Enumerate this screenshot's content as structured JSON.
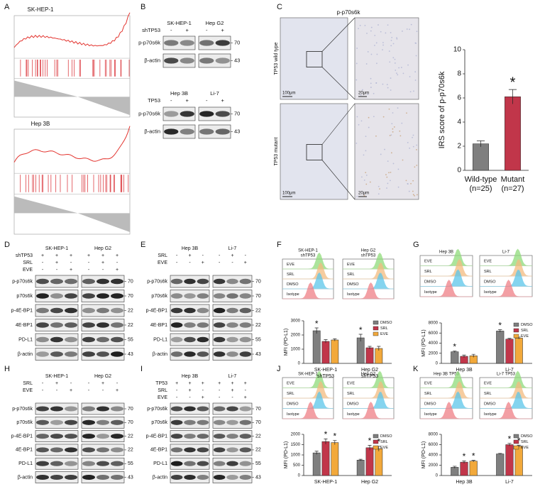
{
  "panels": {
    "A": {
      "label": "A",
      "plots": [
        {
          "title": "SK-HEP-1"
        },
        {
          "title": "Hep 3B"
        }
      ]
    },
    "B": {
      "label": "B",
      "blots": [
        {
          "cells": [
            "SK-HEP-1",
            "Hep G2"
          ],
          "treatments": [
            {
              "name": "shTP53",
              "signs": [
                "-",
                "+",
                "-",
                "+"
              ]
            }
          ],
          "bands": [
            {
              "name": "p-p70s6k",
              "mw": "70"
            },
            {
              "name": "β-actin",
              "mw": "43"
            }
          ]
        },
        {
          "cells": [
            "Hep 3B",
            "Li-7"
          ],
          "treatments": [
            {
              "name": "TP53",
              "signs": [
                "-",
                "+",
                "-",
                "+"
              ]
            }
          ],
          "bands": [
            {
              "name": "p-p70s6k",
              "mw": "70"
            },
            {
              "name": "β-actin",
              "mw": "43"
            }
          ]
        }
      ]
    },
    "C": {
      "label": "C",
      "title": "p-p70s6k",
      "rows": [
        "TP53 wild type",
        "TP53 mutant"
      ],
      "scale_bars": [
        "100μm",
        "20μm"
      ]
    },
    "D": {
      "label": "D",
      "blot": {
        "cells": [
          "SK-HEP-1",
          "Hep G2"
        ],
        "treatments": [
          {
            "name": "shTP53",
            "signs": [
              "+",
              "+",
              "+",
              "+",
              "+",
              "+"
            ]
          },
          {
            "name": "SRL",
            "signs": [
              "-",
              "+",
              "-",
              "-",
              "+",
              "-"
            ]
          },
          {
            "name": "EVE",
            "signs": [
              "-",
              "-",
              "+",
              "-",
              "-",
              "+"
            ]
          }
        ],
        "bands": [
          {
            "name": "p-p70s6k",
            "mw": "70"
          },
          {
            "name": "p70s6k",
            "mw": "70"
          },
          {
            "name": "p-4E-BP1",
            "mw": "22"
          },
          {
            "name": "4E-BP1",
            "mw": "22"
          },
          {
            "name": "PD-L1",
            "mw": "55"
          },
          {
            "name": "β-actin",
            "mw": "43"
          }
        ]
      }
    },
    "E": {
      "label": "E",
      "blot": {
        "cells": [
          "Hep 3B",
          "Li-7"
        ],
        "treatments": [
          {
            "name": "SRL",
            "signs": [
              "-",
              "+",
              "-",
              "-",
              "+",
              "-"
            ]
          },
          {
            "name": "EVE",
            "signs": [
              "-",
              "-",
              "+",
              "-",
              "-",
              "+"
            ]
          }
        ],
        "bands": [
          {
            "name": "p-p70s6k",
            "mw": "70"
          },
          {
            "name": "p70s6k",
            "mw": "70"
          },
          {
            "name": "p-4E-BP1",
            "mw": "22"
          },
          {
            "name": "4E-BP1",
            "mw": "22"
          },
          {
            "name": "PD-L1",
            "mw": "55"
          },
          {
            "name": "β-actin",
            "mw": "43"
          }
        ]
      }
    },
    "F": {
      "label": "F",
      "flow": {
        "titles": [
          [
            "SK-HEP-1",
            "shTP53"
          ],
          [
            "Hep G2",
            "shTP53"
          ]
        ],
        "rows": [
          "EVE",
          "SRL",
          "DMSO",
          "Isotype"
        ]
      }
    },
    "G": {
      "label": "G",
      "flow": {
        "titles": [
          [
            "Hep 3B"
          ],
          [
            "Li-7"
          ]
        ],
        "rows": [
          "EVE",
          "SRL",
          "DMSO",
          "Isotype"
        ]
      }
    },
    "H": {
      "label": "H",
      "blot": {
        "cells": [
          "SK-HEP-1",
          "Hep G2"
        ],
        "treatments": [
          {
            "name": "SRL",
            "signs": [
              "-",
              "+",
              "-",
              "-",
              "+",
              "-"
            ]
          },
          {
            "name": "EVE",
            "signs": [
              "-",
              "-",
              "+",
              "-",
              "-",
              "+"
            ]
          }
        ],
        "bands": [
          {
            "name": "p-p70s6k",
            "mw": "70"
          },
          {
            "name": "p70s6k",
            "mw": "70"
          },
          {
            "name": "p-4E-BP1",
            "mw": "22"
          },
          {
            "name": "4E-BP1",
            "mw": "22"
          },
          {
            "name": "PD-L1",
            "mw": "55"
          },
          {
            "name": "β-actin",
            "mw": "43"
          }
        ]
      }
    },
    "I": {
      "label": "I",
      "blot": {
        "cells": [
          "Hep 3B",
          "Li-7"
        ],
        "treatments": [
          {
            "name": "TP53",
            "signs": [
              "+",
              "+",
              "+",
              "+",
              "+",
              "+"
            ]
          },
          {
            "name": "SRL",
            "signs": [
              "-",
              "+",
              "-",
              "-",
              "+",
              "-"
            ]
          },
          {
            "name": "EVE",
            "signs": [
              "-",
              "-",
              "+",
              "-",
              "-",
              "+"
            ]
          }
        ],
        "bands": [
          {
            "name": "p-p70s6k",
            "mw": "70"
          },
          {
            "name": "p70s6k",
            "mw": "70"
          },
          {
            "name": "p-4E-BP1",
            "mw": "22"
          },
          {
            "name": "4E-BP1",
            "mw": "22"
          },
          {
            "name": "PD-L1",
            "mw": "55"
          },
          {
            "name": "β-actin",
            "mw": "43"
          }
        ]
      }
    },
    "J": {
      "label": "J",
      "flow": {
        "titles": [
          [
            "SK-HEP-1"
          ],
          [
            "Hep G2"
          ]
        ],
        "rows": [
          "EVE",
          "SRL",
          "DMSO",
          "Isotype"
        ]
      }
    },
    "K": {
      "label": "K",
      "flow": {
        "titles": [
          [
            "Hep 3B  TP53"
          ],
          [
            "Li-7  TP53"
          ]
        ],
        "rows": [
          "EVE",
          "SRL",
          "DMSO",
          "Isotype"
        ]
      }
    }
  },
  "chart_data": [
    {
      "type": "bar",
      "ylabel": "IRS score of p-p70s6k",
      "categories": [
        "Wild-type",
        "Mutant"
      ],
      "category_sublabels": [
        "(n=25)",
        "(n=27)"
      ],
      "values": [
        2.2,
        6.1
      ],
      "errors": [
        0.25,
        0.6
      ],
      "colors": [
        "#7f7f7f",
        "#c1364a"
      ],
      "annotations": [
        null,
        "*"
      ],
      "ylim": [
        0,
        10
      ],
      "yticks": [
        0,
        2,
        4,
        6,
        8,
        10
      ]
    },
    {
      "type": "bar",
      "ylabel": "MFI (PD-L1)",
      "categories": [
        "SK-HEP-1",
        "Hep G2"
      ],
      "category_sublabels": [
        "shTP53",
        "shTP53"
      ],
      "legend": "top-right",
      "ylim": [
        0,
        3000
      ],
      "yticks": [
        0,
        1000,
        2000,
        3000
      ],
      "series": [
        {
          "name": "DMSO",
          "color": "#7f7f7f",
          "values": [
            2300,
            1800
          ],
          "errors": [
            200,
            250
          ],
          "labels": [
            "*",
            "*"
          ]
        },
        {
          "name": "SRL",
          "color": "#c1364a",
          "values": [
            1550,
            1100
          ],
          "errors": [
            120,
            100
          ]
        },
        {
          "name": "EVE",
          "color": "#f2a93b",
          "values": [
            1650,
            1050
          ],
          "errors": [
            80,
            150
          ]
        }
      ]
    },
    {
      "type": "bar",
      "ylabel": "MFI (PD-L1)",
      "categories": [
        "Hep 3B",
        "Li-7"
      ],
      "legend": "top-right",
      "ylim": [
        0,
        8000
      ],
      "yticks": [
        0,
        2000,
        4000,
        6000,
        8000
      ],
      "series": [
        {
          "name": "DMSO",
          "color": "#7f7f7f",
          "values": [
            2300,
            6400
          ],
          "errors": [
            150,
            250
          ],
          "labels": [
            "*",
            "*"
          ]
        },
        {
          "name": "SRL",
          "color": "#c1364a",
          "values": [
            1400,
            4800
          ],
          "errors": [
            250,
            150
          ]
        },
        {
          "name": "EVE",
          "color": "#f2a93b",
          "values": [
            1500,
            5000
          ],
          "errors": [
            300,
            200
          ]
        }
      ]
    },
    {
      "type": "bar",
      "ylabel": "MFI (PD-L1)",
      "categories": [
        "SK-HEP-1",
        "Hep G2"
      ],
      "legend": "top-right",
      "ylim": [
        0,
        2000
      ],
      "yticks": [
        0,
        500,
        1000,
        1500,
        2000
      ],
      "series": [
        {
          "name": "DMSO",
          "color": "#7f7f7f",
          "values": [
            1100,
            750
          ],
          "errors": [
            80,
            40
          ]
        },
        {
          "name": "SRL",
          "color": "#c1364a",
          "values": [
            1650,
            1350
          ],
          "errors": [
            130,
            120
          ],
          "labels": [
            "*",
            "*"
          ]
        },
        {
          "name": "EVE",
          "color": "#f2a93b",
          "values": [
            1600,
            1300
          ],
          "errors": [
            100,
            120
          ],
          "labels": [
            "*",
            "*"
          ]
        }
      ]
    },
    {
      "type": "bar",
      "ylabel": "MFI (PD-L1)",
      "categories": [
        "Hep 3B",
        "Li-7"
      ],
      "legend": "top-right",
      "ylim": [
        0,
        8000
      ],
      "yticks": [
        0,
        2000,
        4000,
        6000,
        8000
      ],
      "series": [
        {
          "name": "DMSO",
          "color": "#7f7f7f",
          "values": [
            1600,
            4200
          ],
          "errors": [
            200,
            100
          ]
        },
        {
          "name": "SRL",
          "color": "#c1364a",
          "values": [
            2600,
            6000
          ],
          "errors": [
            250,
            250
          ],
          "labels": [
            "*",
            "*"
          ]
        },
        {
          "name": "EVE",
          "color": "#f2a93b",
          "values": [
            2800,
            5700
          ],
          "errors": [
            150,
            200
          ],
          "labels": [
            "*",
            "*"
          ]
        }
      ]
    }
  ]
}
